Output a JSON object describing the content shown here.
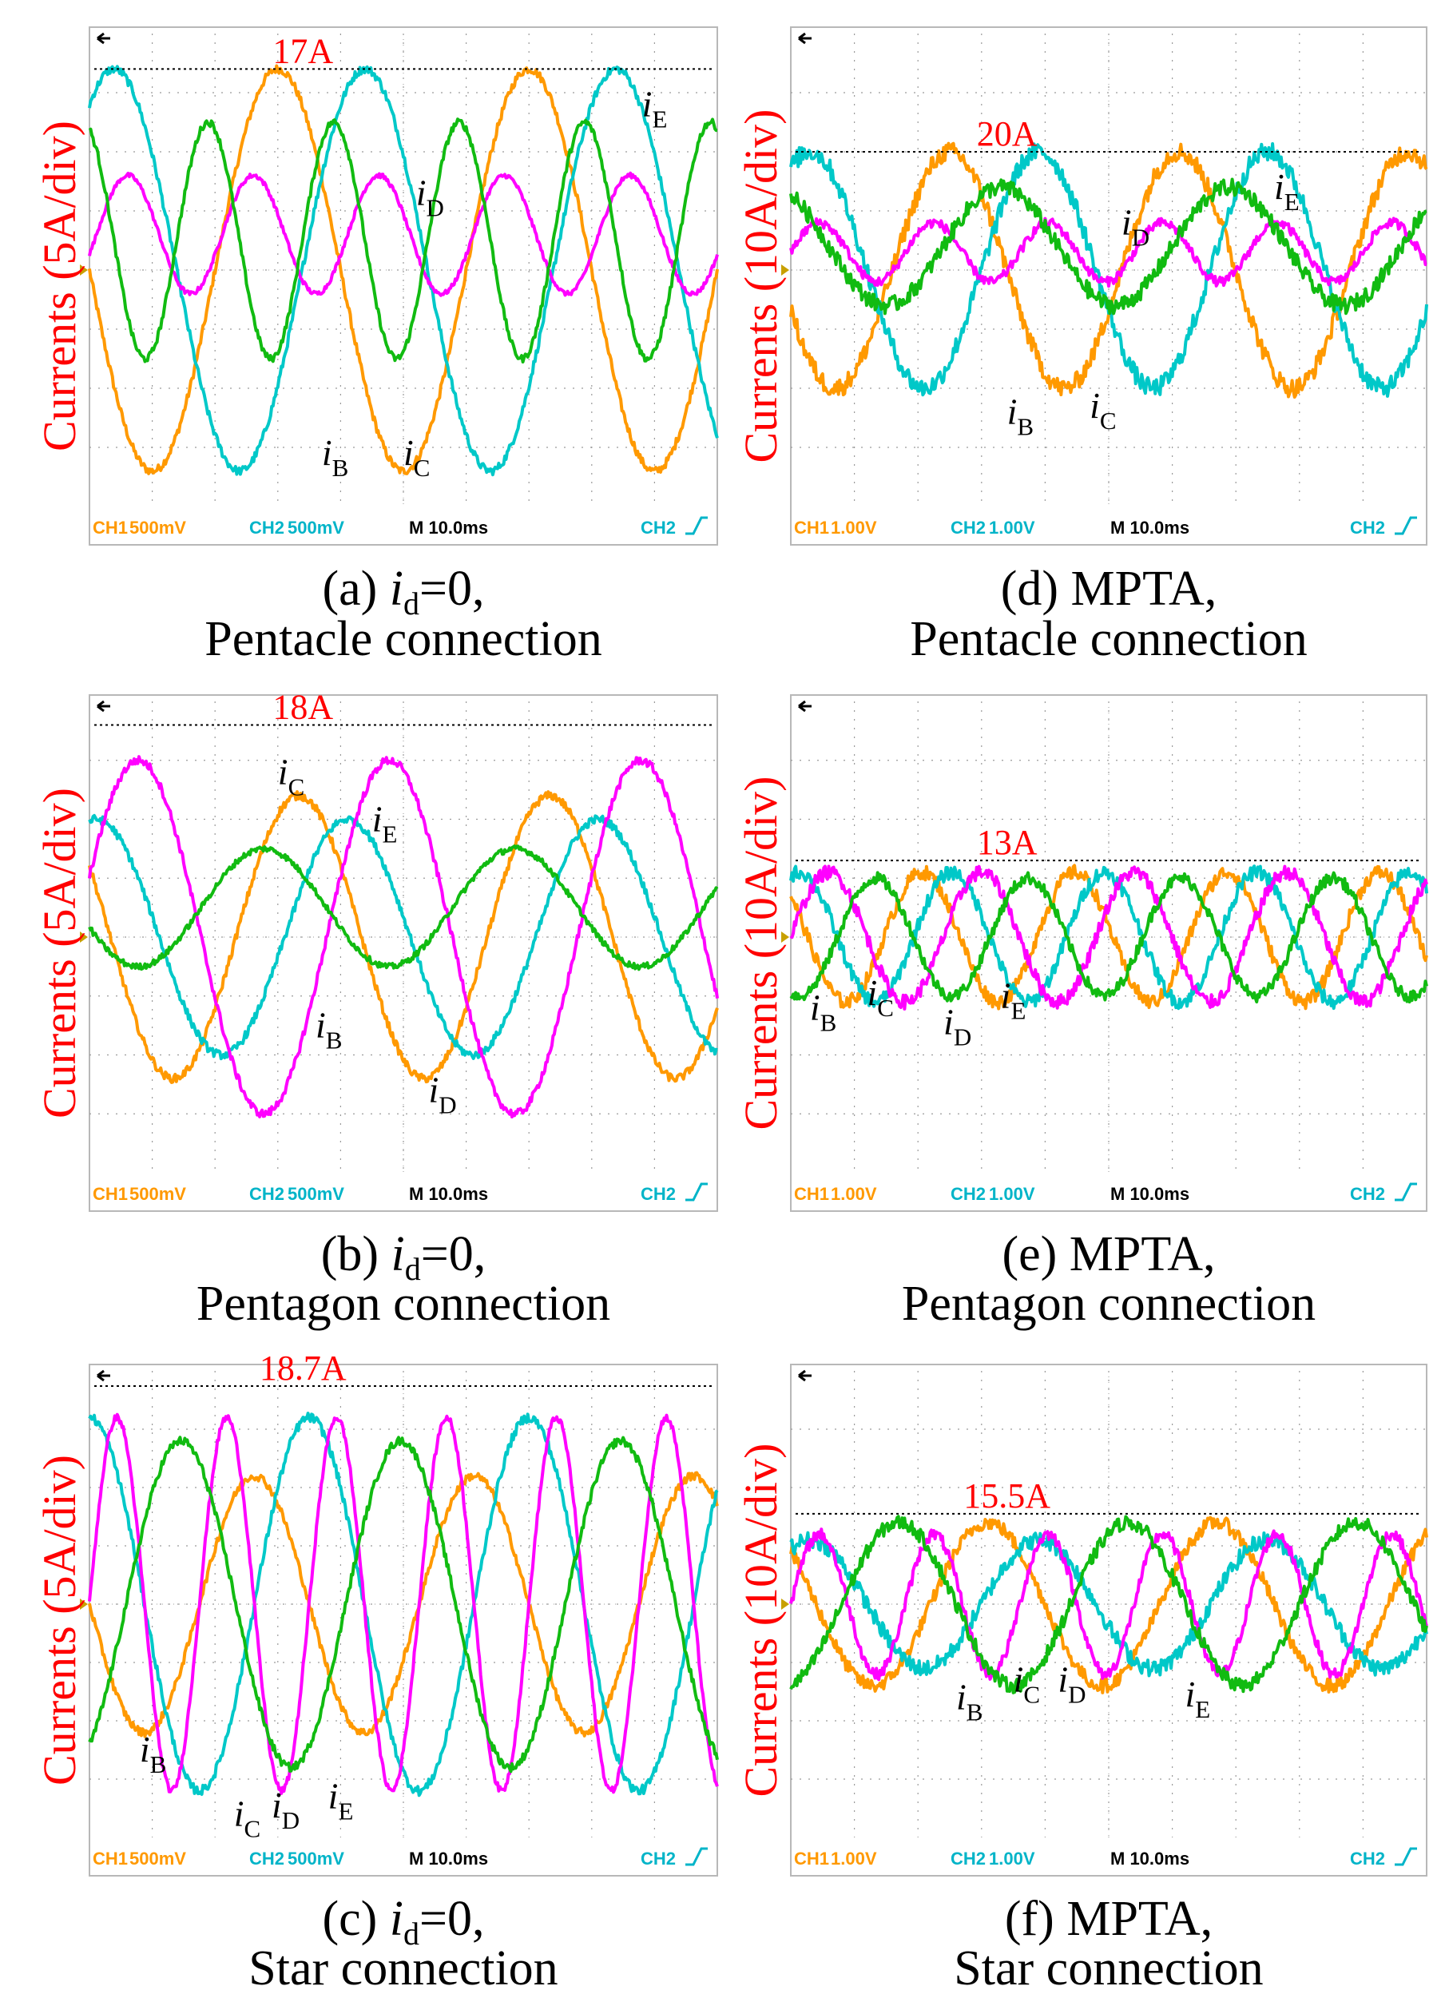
{
  "colors": {
    "ch_B": "#ff9900",
    "ch_C": "#00c8c8",
    "ch_D": "#ff00ff",
    "ch_E": "#11bb11",
    "axis_label": "#ff0000",
    "peak_label": "#ff0000",
    "grid": "#9a9a9a",
    "status_ch1": "#ff9900",
    "status_ch2": "#00b4c8",
    "status_time": "#000000",
    "screen_bg": "#ffffff"
  },
  "chart_data": [
    {
      "id": "a",
      "type": "line",
      "title_caption": "(a) id=0, Pentacle connection",
      "caption": {
        "prefix": "(a) ",
        "var": "i",
        "sub": "d",
        "suffix": "=0,",
        "line2": "Pentacle connection"
      },
      "ylabel": "Currents (5A/div)",
      "unit_per_div": 5,
      "peak_label": "17A",
      "peak_value": 17,
      "xlabel": "M 10.0ms",
      "x_range_ms": [
        0,
        100
      ],
      "y_range_A": [
        -20,
        20
      ],
      "status": {
        "ch1": "CH1",
        "ch1_scale": "500mV",
        "ch2": "CH2",
        "ch2_scale": "500mV",
        "time": "M 10.0ms",
        "trig": "CH2"
      },
      "series": [
        {
          "name": "iB",
          "label_sub": "B",
          "color_key": "ch_B",
          "amplitude": 17,
          "period_ms": 40,
          "phase_deg": 180,
          "offset": 0,
          "noise": 0.35
        },
        {
          "name": "iC",
          "label_sub": "C",
          "color_key": "ch_C",
          "amplitude": 17,
          "period_ms": 40,
          "phase_deg": 55,
          "offset": 0,
          "noise": 0.35
        },
        {
          "name": "iD",
          "label_sub": "D",
          "color_key": "ch_D",
          "amplitude": 5,
          "period_ms": 20,
          "phase_deg": -20,
          "offset": 3,
          "noise": 0.2
        },
        {
          "name": "iE",
          "label_sub": "E",
          "color_key": "ch_E",
          "amplitude": 10,
          "period_ms": 20,
          "phase_deg": 110,
          "offset": 2.5,
          "noise": 0.3
        }
      ],
      "trace_labels": [
        {
          "var": "i",
          "sub": "E",
          "t_ms": 88,
          "a": 13
        },
        {
          "var": "i",
          "sub": "D",
          "t_ms": 52,
          "a": 5.5
        },
        {
          "var": "i",
          "sub": "B",
          "t_ms": 37,
          "a": -16.5
        },
        {
          "var": "i",
          "sub": "C",
          "t_ms": 50,
          "a": -16.5
        }
      ]
    },
    {
      "id": "b",
      "type": "line",
      "title_caption": "(b) id=0, Pentagon connection",
      "caption": {
        "prefix": "(b) ",
        "var": "i",
        "sub": "d",
        "suffix": "=0,",
        "line2": "Pentagon connection"
      },
      "ylabel": "Currents (5A/div)",
      "unit_per_div": 5,
      "peak_label": "18A",
      "peak_value": 18,
      "xlabel": "M 10.0ms",
      "x_range_ms": [
        0,
        100
      ],
      "y_range_A": [
        -20,
        20
      ],
      "status": {
        "ch1": "CH1",
        "ch1_scale": "500mV",
        "ch2": "CH2",
        "ch2_scale": "500mV",
        "time": "M 10.0ms",
        "trig": "CH2"
      },
      "series": [
        {
          "name": "iB",
          "label_sub": "B",
          "color_key": "ch_B",
          "amplitude": 12,
          "period_ms": 40,
          "phase_deg": 150,
          "offset": 0,
          "noise": 0.35
        },
        {
          "name": "iC",
          "label_sub": "C",
          "color_key": "ch_C",
          "amplitude": 10,
          "period_ms": 40,
          "phase_deg": 80,
          "offset": 0,
          "noise": 0.35
        },
        {
          "name": "iD",
          "label_sub": "D",
          "color_key": "ch_D",
          "amplitude": 15,
          "period_ms": 40,
          "phase_deg": 20,
          "offset": 0,
          "noise": 0.35
        },
        {
          "name": "iE",
          "label_sub": "E",
          "color_key": "ch_E",
          "amplitude": 5,
          "period_ms": 40,
          "phase_deg": 200,
          "offset": 2.5,
          "noise": 0.25
        }
      ],
      "trace_labels": [
        {
          "var": "i",
          "sub": "C",
          "t_ms": 30,
          "a": 13
        },
        {
          "var": "i",
          "sub": "E",
          "t_ms": 45,
          "a": 9
        },
        {
          "var": "i",
          "sub": "B",
          "t_ms": 36,
          "a": -8.5
        },
        {
          "var": "i",
          "sub": "D",
          "t_ms": 54,
          "a": -14
        }
      ]
    },
    {
      "id": "c",
      "type": "line",
      "title_caption": "(c) id=0, Star connection",
      "caption": {
        "prefix": "(c) ",
        "var": "i",
        "sub": "d",
        "suffix": "=0,",
        "line2": "Star connection"
      },
      "ylabel": "Currents (5A/div)",
      "unit_per_div": 5,
      "peak_label": "18.7A",
      "peak_value": 18.7,
      "xlabel": "M 10.0ms",
      "x_range_ms": [
        0,
        100
      ],
      "y_range_A": [
        -20,
        20
      ],
      "status": {
        "ch1": "CH1",
        "ch1_scale": "500mV",
        "ch2": "CH2",
        "ch2_scale": "500mV",
        "time": "M 10.0ms",
        "trig": "CH2"
      },
      "series": [
        {
          "name": "iB",
          "label_sub": "B",
          "color_key": "ch_B",
          "amplitude": 11,
          "period_ms": 35,
          "phase_deg": 180,
          "offset": 0,
          "noise": 0.35
        },
        {
          "name": "iC",
          "label_sub": "C",
          "color_key": "ch_C",
          "amplitude": 16,
          "period_ms": 35,
          "phase_deg": 90,
          "offset": 0,
          "noise": 0.4
        },
        {
          "name": "iD",
          "label_sub": "D",
          "color_key": "ch_D",
          "amplitude": 16,
          "period_ms": 17.5,
          "phase_deg": 0,
          "offset": 0,
          "noise": 0.3
        },
        {
          "name": "iE",
          "label_sub": "E",
          "color_key": "ch_E",
          "amplitude": 14,
          "period_ms": 35,
          "phase_deg": 300,
          "offset": 0,
          "noise": 0.35
        }
      ],
      "trace_labels": [
        {
          "var": "i",
          "sub": "B",
          "t_ms": 8,
          "a": -13.5
        },
        {
          "var": "i",
          "sub": "C",
          "t_ms": 23,
          "a": -19
        },
        {
          "var": "i",
          "sub": "D",
          "t_ms": 29,
          "a": -18.3
        },
        {
          "var": "i",
          "sub": "E",
          "t_ms": 38,
          "a": -17.5
        }
      ]
    },
    {
      "id": "d",
      "type": "line",
      "title_caption": "(d) MPTA, Pentacle connection",
      "caption": {
        "prefix": "(d) MPTA,",
        "var": "",
        "sub": "",
        "suffix": "",
        "line2": "Pentacle connection"
      },
      "ylabel": "Currents (10A/div)",
      "unit_per_div": 10,
      "peak_label": "20A",
      "peak_value": 20,
      "xlabel": "M 10.0ms",
      "x_range_ms": [
        0,
        100
      ],
      "y_range_A": [
        -40,
        40
      ],
      "status": {
        "ch1": "CH1",
        "ch1_scale": "1.00V",
        "ch2": "CH2",
        "ch2_scale": "1.00V",
        "time": "M 10.0ms",
        "trig": "CH2"
      },
      "series": [
        {
          "name": "iB",
          "label_sub": "B",
          "color_key": "ch_B",
          "amplitude": 20,
          "period_ms": 36,
          "phase_deg": 200,
          "offset": 0,
          "noise": 0.8
        },
        {
          "name": "iC",
          "label_sub": "C",
          "color_key": "ch_C",
          "amplitude": 20,
          "period_ms": 36,
          "phase_deg": 60,
          "offset": 0,
          "noise": 0.8
        },
        {
          "name": "iD",
          "label_sub": "D",
          "color_key": "ch_D",
          "amplitude": 5,
          "period_ms": 18,
          "phase_deg": 0,
          "offset": 3,
          "noise": 0.4
        },
        {
          "name": "iE",
          "label_sub": "E",
          "color_key": "ch_E",
          "amplitude": 10,
          "period_ms": 36,
          "phase_deg": 120,
          "offset": 4,
          "noise": 0.7
        }
      ],
      "trace_labels": [
        {
          "var": "i",
          "sub": "E",
          "t_ms": 76,
          "a": 12
        },
        {
          "var": "i",
          "sub": "D",
          "t_ms": 52,
          "a": 6
        },
        {
          "var": "i",
          "sub": "B",
          "t_ms": 34,
          "a": -26
        },
        {
          "var": "i",
          "sub": "C",
          "t_ms": 47,
          "a": -25
        }
      ]
    },
    {
      "id": "e",
      "type": "line",
      "title_caption": "(e) MPTA, Pentagon connection",
      "caption": {
        "prefix": "(e) MPTA,",
        "var": "",
        "sub": "",
        "suffix": "",
        "line2": "Pentagon connection"
      },
      "ylabel": "Currents (10A/div)",
      "unit_per_div": 10,
      "peak_label": "13A",
      "peak_value": 13,
      "xlabel": "M 10.0ms",
      "x_range_ms": [
        0,
        100
      ],
      "y_range_A": [
        -40,
        40
      ],
      "status": {
        "ch1": "CH1",
        "ch1_scale": "1.00V",
        "ch2": "CH2",
        "ch2_scale": "1.00V",
        "time": "M 10.0ms",
        "trig": "CH2"
      },
      "series": [
        {
          "name": "iB",
          "label_sub": "B",
          "color_key": "ch_B",
          "amplitude": 11,
          "period_ms": 24,
          "phase_deg": 140,
          "offset": 0,
          "noise": 0.6
        },
        {
          "name": "iC",
          "label_sub": "C",
          "color_key": "ch_C",
          "amplitude": 11,
          "period_ms": 24,
          "phase_deg": 70,
          "offset": 0,
          "noise": 0.6
        },
        {
          "name": "iD",
          "label_sub": "D",
          "color_key": "ch_D",
          "amplitude": 11,
          "period_ms": 24,
          "phase_deg": 0,
          "offset": 0,
          "noise": 0.6
        },
        {
          "name": "iE",
          "label_sub": "E",
          "color_key": "ch_E",
          "amplitude": 10,
          "period_ms": 24,
          "phase_deg": 250,
          "offset": 0,
          "noise": 0.5
        }
      ],
      "trace_labels": [
        {
          "var": "i",
          "sub": "B",
          "t_ms": 3,
          "a": -14
        },
        {
          "var": "i",
          "sub": "C",
          "t_ms": 12,
          "a": -11.5
        },
        {
          "var": "i",
          "sub": "D",
          "t_ms": 24,
          "a": -16.5
        },
        {
          "var": "i",
          "sub": "E",
          "t_ms": 33,
          "a": -12
        }
      ]
    },
    {
      "id": "f",
      "type": "line",
      "title_caption": "(f) MPTA, Star connection",
      "caption": {
        "prefix": "(f) MPTA,",
        "var": "",
        "sub": "",
        "suffix": "",
        "line2": "Star connection"
      },
      "ylabel": "Currents (10A/div)",
      "unit_per_div": 10,
      "peak_label": "15.5A",
      "peak_value": 15.5,
      "xlabel": "M 10.0ms",
      "x_range_ms": [
        0,
        100
      ],
      "y_range_A": [
        -40,
        40
      ],
      "status": {
        "ch1": "CH1",
        "ch1_scale": "1.00V",
        "ch2": "CH2",
        "ch2_scale": "1.00V",
        "time": "M 10.0ms",
        "trig": "CH2"
      },
      "series": [
        {
          "name": "iB",
          "label_sub": "B",
          "color_key": "ch_B",
          "amplitude": 14,
          "period_ms": 36,
          "phase_deg": 140,
          "offset": 0,
          "noise": 0.6
        },
        {
          "name": "iC",
          "label_sub": "C",
          "color_key": "ch_C",
          "amplitude": 11,
          "period_ms": 36,
          "phase_deg": 60,
          "offset": 0,
          "noise": 0.7
        },
        {
          "name": "iD",
          "label_sub": "D",
          "color_key": "ch_D",
          "amplitude": 12,
          "period_ms": 18,
          "phase_deg": 0,
          "offset": 0,
          "noise": 0.5
        },
        {
          "name": "iE",
          "label_sub": "E",
          "color_key": "ch_E",
          "amplitude": 14,
          "period_ms": 36,
          "phase_deg": 280,
          "offset": 0,
          "noise": 0.6
        }
      ],
      "trace_labels": [
        {
          "var": "i",
          "sub": "B",
          "t_ms": 26,
          "a": -18
        },
        {
          "var": "i",
          "sub": "C",
          "t_ms": 35,
          "a": -15
        },
        {
          "var": "i",
          "sub": "D",
          "t_ms": 42,
          "a": -15
        },
        {
          "var": "i",
          "sub": "E",
          "t_ms": 62,
          "a": -17.5
        }
      ]
    }
  ]
}
